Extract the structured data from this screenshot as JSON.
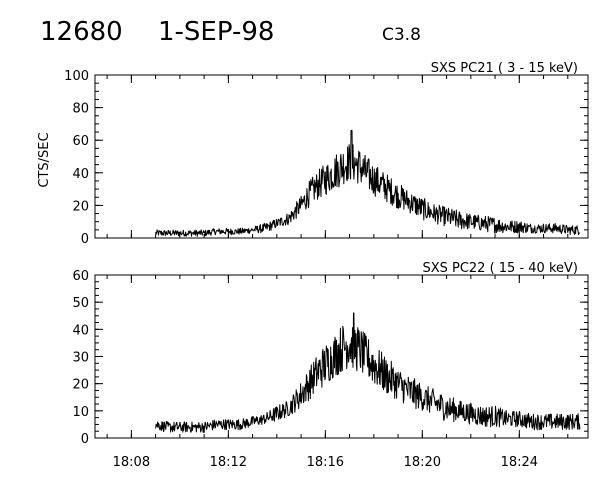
{
  "header": {
    "event_id": "12680",
    "date": "1-SEP-98",
    "flare_class": "C3.8"
  },
  "chart_data": [
    {
      "type": "line",
      "title": "SXS PC21  (  3 - 15 keV)",
      "ylabel": "CTS/SEC",
      "xlabel": "",
      "xlim": [
        "18:06:30",
        "18:26:50"
      ],
      "ylim": [
        0,
        100
      ],
      "yticks": [
        0,
        20,
        40,
        60,
        80,
        100
      ],
      "xticks": [
        "18:08",
        "18:12",
        "18:16",
        "18:20",
        "18:24"
      ],
      "grid": false,
      "series": [
        {
          "values_note": "noisy count-rate envelope, sampled points",
          "x": [
            "18:09:00",
            "18:09:30",
            "18:10:00",
            "18:10:30",
            "18:11:00",
            "18:11:30",
            "18:12:00",
            "18:12:30",
            "18:13:00",
            "18:13:30",
            "18:14:00",
            "18:14:30",
            "18:15:00",
            "18:15:20",
            "18:15:40",
            "18:16:00",
            "18:16:20",
            "18:16:40",
            "18:17:00",
            "18:17:20",
            "18:17:40",
            "18:18:00",
            "18:18:30",
            "18:19:00",
            "18:19:30",
            "18:20:00",
            "18:20:30",
            "18:21:00",
            "18:21:30",
            "18:22:00",
            "18:22:30",
            "18:23:00",
            "18:23:30",
            "18:24:00",
            "18:24:30",
            "18:25:00",
            "18:25:30",
            "18:26:00",
            "18:26:30"
          ],
          "y": [
            3,
            3,
            3,
            3,
            3,
            4,
            4,
            4,
            5,
            6,
            9,
            12,
            20,
            27,
            32,
            36,
            40,
            44,
            47,
            45,
            40,
            36,
            31,
            26,
            22,
            18,
            15,
            13,
            11,
            10,
            9,
            8,
            7,
            7,
            6,
            6,
            6,
            5,
            5
          ],
          "noise": [
            2,
            2,
            2,
            2,
            2,
            2,
            2,
            2,
            2,
            3,
            3,
            4,
            6,
            8,
            9,
            10,
            11,
            12,
            12,
            12,
            11,
            10,
            9,
            8,
            7,
            7,
            6,
            6,
            6,
            5,
            5,
            5,
            4,
            4,
            3,
            3,
            3,
            3,
            3
          ],
          "peak": [
            "18:17:05",
            66
          ]
        }
      ]
    },
    {
      "type": "line",
      "title": "SXS PC22  ( 15 - 40 keV)",
      "ylabel": "",
      "xlabel": "",
      "xlim": [
        "18:06:30",
        "18:26:50"
      ],
      "ylim": [
        0,
        60
      ],
      "yticks": [
        0,
        10,
        20,
        30,
        40,
        50,
        60
      ],
      "xticks": [
        "18:08",
        "18:12",
        "18:16",
        "18:20",
        "18:24"
      ],
      "grid": false,
      "series": [
        {
          "x": [
            "18:09:00",
            "18:09:30",
            "18:10:00",
            "18:10:30",
            "18:11:00",
            "18:11:30",
            "18:12:00",
            "18:12:30",
            "18:13:00",
            "18:13:30",
            "18:14:00",
            "18:14:30",
            "18:15:00",
            "18:15:20",
            "18:15:40",
            "18:16:00",
            "18:16:20",
            "18:16:40",
            "18:17:00",
            "18:17:20",
            "18:17:40",
            "18:18:00",
            "18:18:30",
            "18:19:00",
            "18:19:30",
            "18:20:00",
            "18:20:30",
            "18:21:00",
            "18:21:30",
            "18:22:00",
            "18:22:30",
            "18:23:00",
            "18:23:30",
            "18:24:00",
            "18:24:30",
            "18:25:00",
            "18:25:30",
            "18:26:00",
            "18:26:30"
          ],
          "y": [
            5,
            4,
            4,
            4,
            4,
            5,
            5,
            5,
            6,
            7,
            9,
            11,
            16,
            20,
            24,
            27,
            30,
            33,
            35,
            33,
            30,
            27,
            23,
            20,
            17,
            15,
            13,
            11,
            10,
            9,
            8,
            8,
            7,
            7,
            6,
            6,
            6,
            6,
            6
          ],
          "noise": [
            2,
            2,
            2,
            2,
            2,
            2,
            2,
            2,
            2,
            2,
            3,
            3,
            5,
            6,
            7,
            8,
            8,
            9,
            9,
            9,
            8,
            8,
            7,
            6,
            6,
            5,
            5,
            5,
            4,
            4,
            4,
            4,
            3,
            3,
            3,
            3,
            3,
            3,
            3
          ],
          "peak": [
            "18:17:10",
            46
          ]
        }
      ]
    }
  ]
}
